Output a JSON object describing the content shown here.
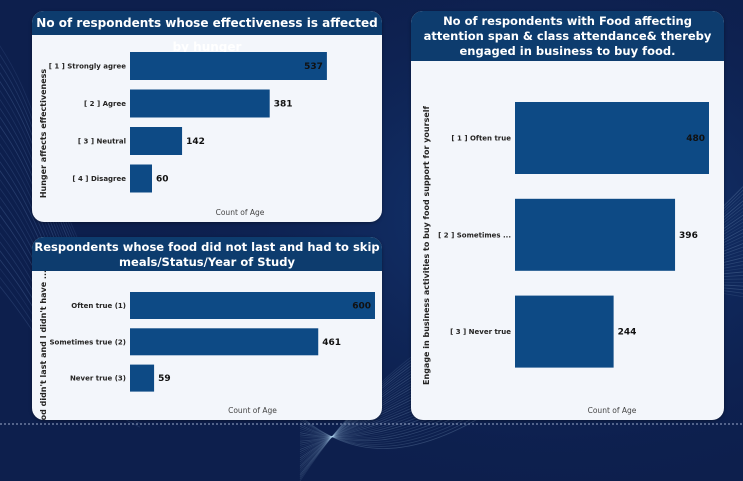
{
  "theme": {
    "bar_color": "#0d4a85",
    "header_color": "#0d3c6e",
    "card_color": "#f3f6fb",
    "background_color": "#0d1f4d"
  },
  "chart_data": [
    {
      "type": "bar",
      "orientation": "horizontal",
      "title": "No of respondents whose effectiveness is affected by hunger",
      "ylabel": "Hunger affects effectiveness",
      "xlabel": "Count of Age",
      "categories": [
        "[ 1 ] Strongly agree",
        "[ 2 ] Agree",
        "[ 3 ] Neutral",
        "[ 4 ] Disagree"
      ],
      "values": [
        537,
        381,
        142,
        60
      ],
      "xlim": [
        0,
        600
      ]
    },
    {
      "type": "bar",
      "orientation": "horizontal",
      "title": "Respondents whose food did not last and had to skip meals/Status/Year of Study",
      "ylabel": "Food didn't last and I didn't have ...",
      "xlabel": "Count of Age",
      "categories": [
        "Often true (1)",
        "Sometimes true (2)",
        "Never true (3)"
      ],
      "values": [
        600,
        461,
        59
      ],
      "xlim": [
        0,
        600
      ]
    },
    {
      "type": "bar",
      "orientation": "horizontal",
      "title": "No of respondents with Food affecting attention span & class attendance& thereby engaged in business to buy food.",
      "ylabel": "Engage in business activities to buy food support for yourself",
      "xlabel": "Count of Age",
      "categories": [
        "[ 1 ] Often true",
        "[ 2 ] Sometimes ...",
        "[ 3 ] Never true"
      ],
      "values": [
        480,
        396,
        244
      ],
      "xlim": [
        0,
        480
      ]
    }
  ]
}
